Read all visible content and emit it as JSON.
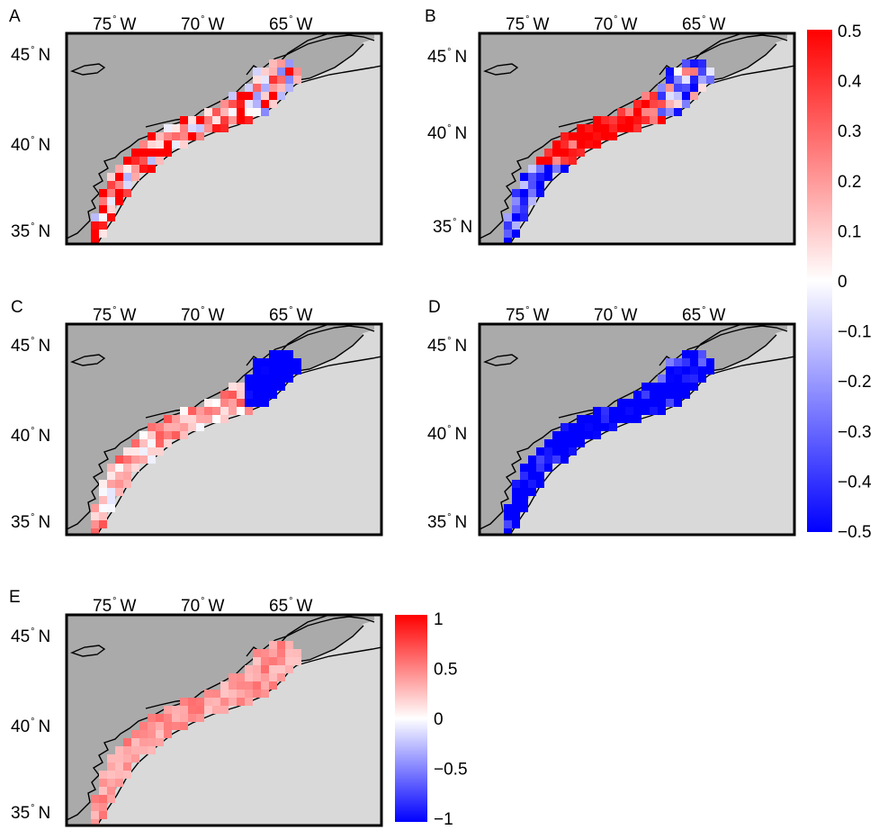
{
  "figure": {
    "tick_labels": {
      "lon": [
        {
          "deg": "75",
          "dir": "W"
        },
        {
          "deg": "70",
          "dir": "W"
        },
        {
          "deg": "65",
          "dir": "W"
        }
      ],
      "lat": [
        {
          "deg": "45",
          "dir": "N"
        },
        {
          "deg": "40",
          "dir": "N"
        },
        {
          "deg": "35",
          "dir": "N"
        }
      ],
      "degree_symbol": "°"
    },
    "panels": [
      {
        "letter": "A",
        "pattern": "mixed-positive",
        "min_value": -0.5,
        "max_value": 0.5
      },
      {
        "letter": "B",
        "pattern": "mixed-red-south-blue",
        "min_value": -0.5,
        "max_value": 0.5
      },
      {
        "letter": "C",
        "pattern": "blue-gulf-of-maine",
        "min_value": -0.5,
        "max_value": 0.5
      },
      {
        "letter": "D",
        "pattern": "mostly-blue",
        "min_value": -0.5,
        "max_value": 0.5
      },
      {
        "letter": "E",
        "pattern": "all-red",
        "min_value": -1,
        "max_value": 1
      }
    ],
    "colorbars": [
      {
        "id": "shared-ABCD",
        "min": -0.5,
        "max": 0.5,
        "ticks": [
          "0.5",
          "0.4",
          "0.3",
          "0.2",
          "0.1",
          "0",
          "−0.1",
          "−0.2",
          "−0.3",
          "−0.4",
          "−0.5"
        ]
      },
      {
        "id": "panel-E",
        "min": -1,
        "max": 1,
        "ticks": [
          "1",
          "0.5",
          "0",
          "−0.5",
          "−1"
        ]
      }
    ],
    "colors": {
      "land": "#aaaaaa",
      "ocean": "#d9d9d9",
      "coast": "#000000",
      "positive": "#ff0000",
      "negative": "#0000ff",
      "neutral": "#ffffff"
    }
  }
}
